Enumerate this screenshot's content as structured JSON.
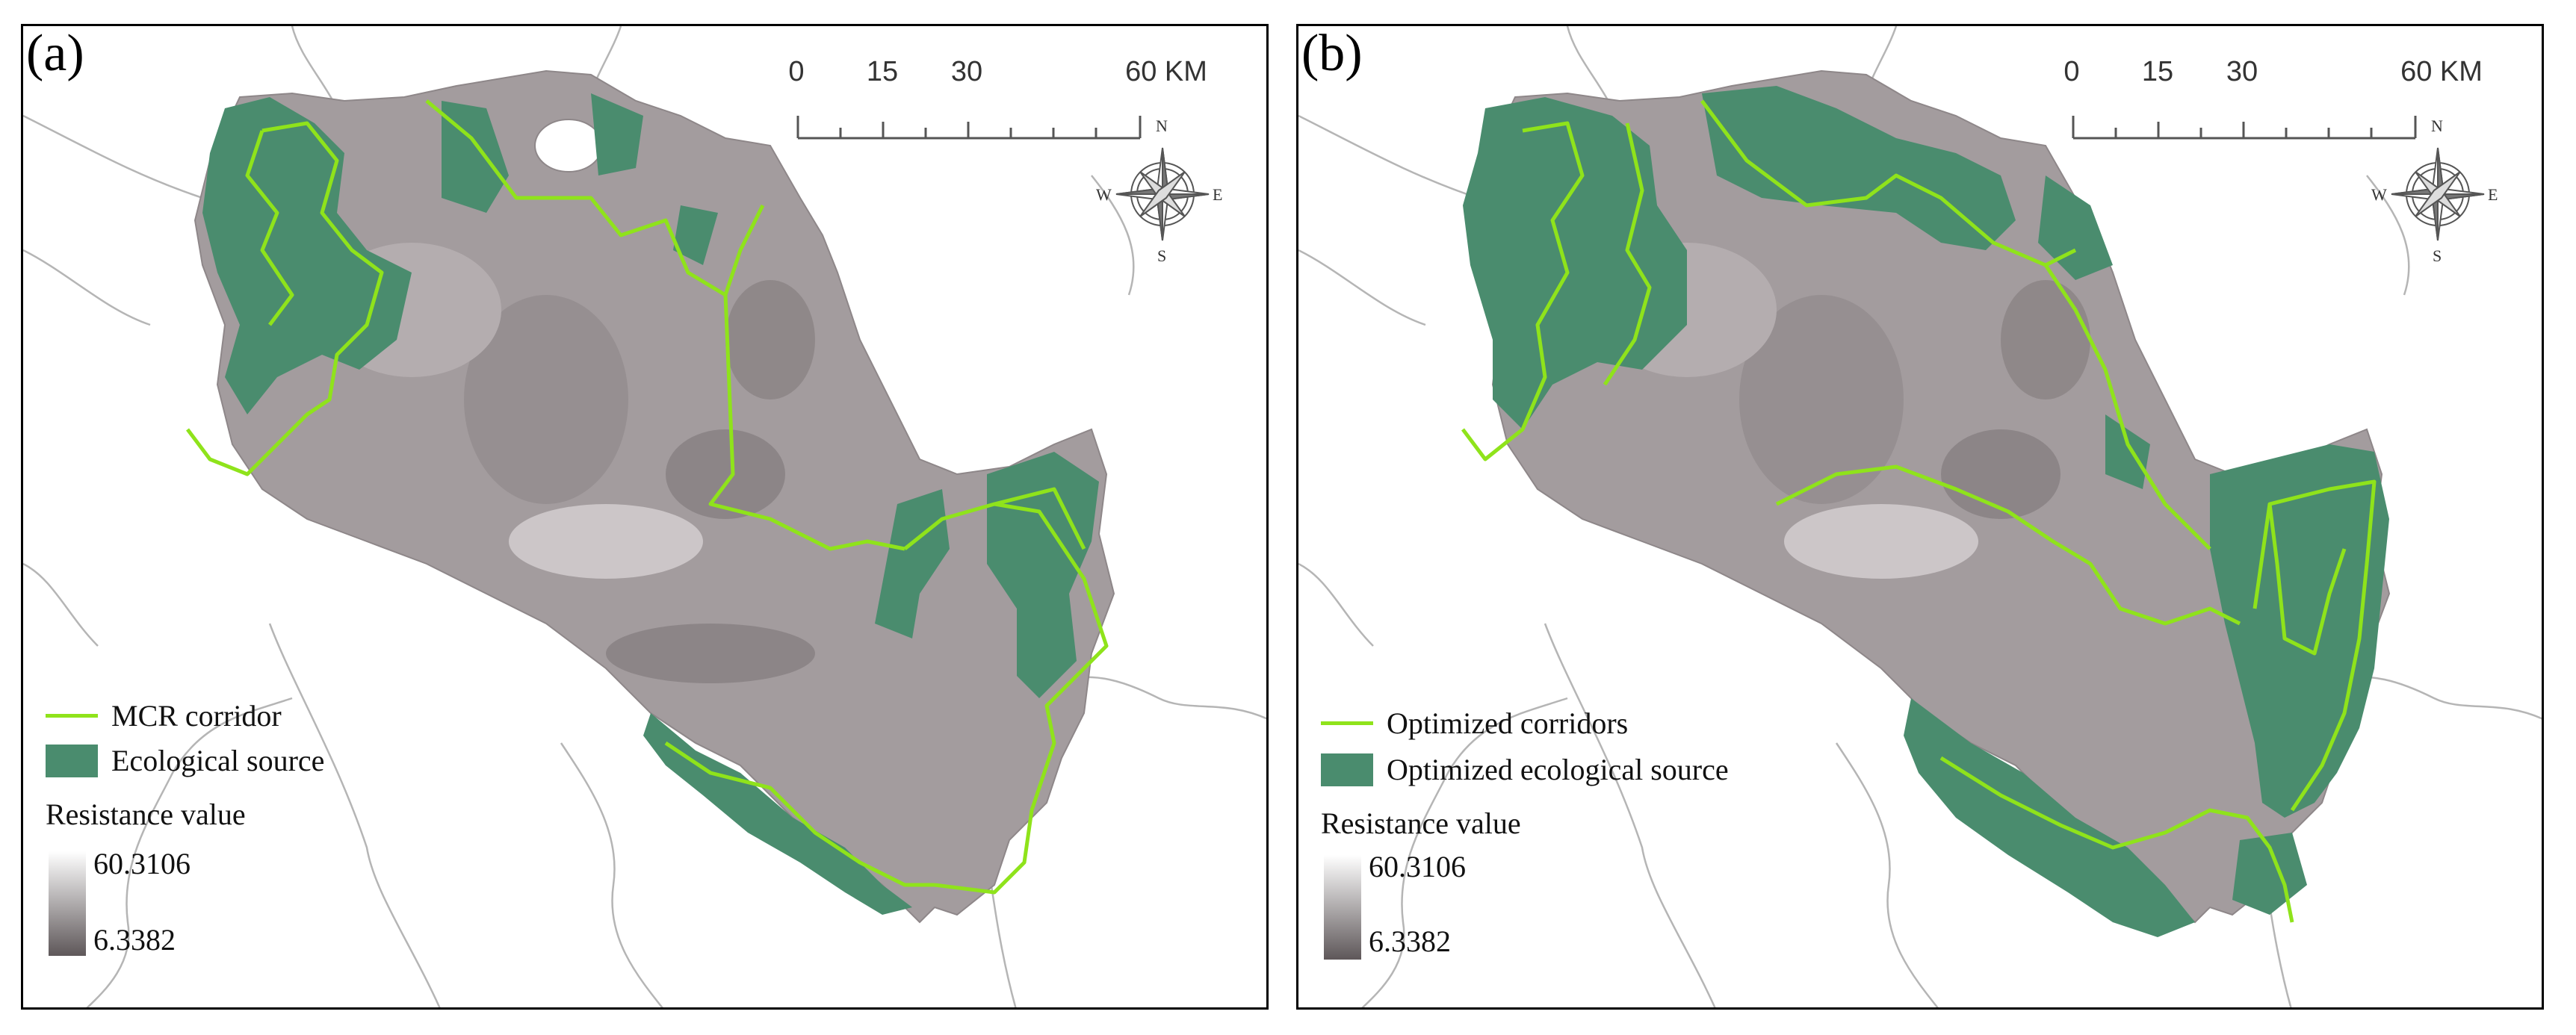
{
  "panels": [
    {
      "label": "(a)",
      "scale": {
        "ticks": [
          "0",
          "15",
          "30",
          "60 KM"
        ]
      },
      "compass": {
        "n": "N",
        "s": "S",
        "e": "E",
        "w": "W"
      },
      "legend": {
        "corridor": "MCR corridor",
        "source": "Ecological source",
        "resistance_title": "Resistance value",
        "max": "60.3106",
        "min": "6.3382"
      }
    },
    {
      "label": "(b)",
      "scale": {
        "ticks": [
          "0",
          "15",
          "30",
          "60 KM"
        ]
      },
      "compass": {
        "n": "N",
        "s": "S",
        "e": "E",
        "w": "W"
      },
      "legend": {
        "corridor": "Optimized corridors",
        "source": "Optimized ecological source",
        "resistance_title": "Resistance value",
        "max": "60.3106",
        "min": "6.3382"
      }
    }
  ],
  "colors": {
    "corridor": "#8fe31b",
    "source": "#4a8c6e",
    "resistance_high": "#ffffff",
    "resistance_low": "#5e5759",
    "study_area": "#a39c9e",
    "boundary": "#b5b5b5"
  }
}
